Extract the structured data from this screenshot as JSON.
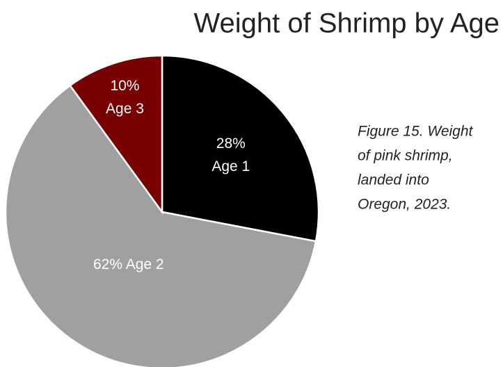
{
  "chart_data": {
    "type": "pie",
    "title": "Weight of Shrimp by Age",
    "caption": [
      "Figure 15. Weight",
      "of pink shrimp,",
      "landed into",
      "Oregon, 2023."
    ],
    "categories": [
      "Age 1",
      "Age 2",
      "Age 3"
    ],
    "values": [
      28,
      62,
      10
    ],
    "value_labels": [
      "28%",
      "62%",
      "10%"
    ],
    "colors": [
      "#000000",
      "#a0a0a0",
      "#780000"
    ]
  }
}
